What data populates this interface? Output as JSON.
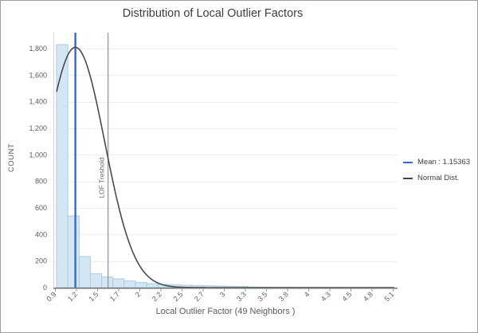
{
  "chart_data": {
    "type": "bar",
    "subtype": "histogram-with-normal-curve",
    "title": "Distribution of Local Outlier Factors",
    "xlabel": "Local Outlier Factor (49 Neighbors )",
    "ylabel": "COUNT",
    "x_range": [
      0.9,
      5.1
    ],
    "x_tick_labels": [
      "0.9",
      "1.2",
      "1.5",
      "1.7",
      "2",
      "2.2",
      "2.5",
      "2.7",
      "3",
      "3.3",
      "3.5",
      "3.8",
      "4",
      "4.3",
      "4.5",
      "4.8",
      "5.1"
    ],
    "y_tick_labels": [
      "0",
      "200",
      "400",
      "600",
      "800",
      "1,000",
      "1,200",
      "1,400",
      "1,600",
      "1,800"
    ],
    "y_tick_values": [
      0,
      200,
      400,
      600,
      800,
      1000,
      1200,
      1400,
      1600,
      1800
    ],
    "ylim": [
      0,
      1920
    ],
    "grid": "horizontal-only",
    "legend_position": "right",
    "histogram": {
      "bin_start": 0.92,
      "bin_width": 0.14,
      "counts": [
        1830,
        540,
        234,
        104,
        80,
        66,
        50,
        38,
        30,
        24,
        22,
        18,
        16,
        14,
        12,
        10,
        8,
        4,
        3,
        2,
        2,
        1,
        1,
        0,
        0,
        0,
        0,
        0,
        0,
        0
      ]
    },
    "normal_curve": {
      "mean": 1.15363,
      "sigma": 0.365,
      "peak": 1810,
      "draw_from": 0.92,
      "draw_to": 5.12
    },
    "mean_line": {
      "value": 1.15363
    },
    "threshold_line": {
      "value": 1.56,
      "label": "LOF Treshold"
    },
    "legend": [
      {
        "label": "Mean : 1.15363",
        "color": "#2e6bd4"
      },
      {
        "label": "Normal Dist.",
        "color": "#4a4a4a"
      }
    ],
    "colors": {
      "bar_fill": "#d3e6f3",
      "bar_stroke": "#aacbe2",
      "curve": "#4a4a4a",
      "mean_line": "#2e6bd4",
      "threshold_line": "#8f8f8f",
      "gridline": "#ededed",
      "x_axis_line": "#707070",
      "y_axis_line": "#d9d9d9",
      "tick_mark": "#9a9a9a",
      "tick_text": "#5a5a5a",
      "title_text": "#3d3d3d",
      "threshold_text": "#666666",
      "frame_border": "#9c9c9c"
    }
  }
}
